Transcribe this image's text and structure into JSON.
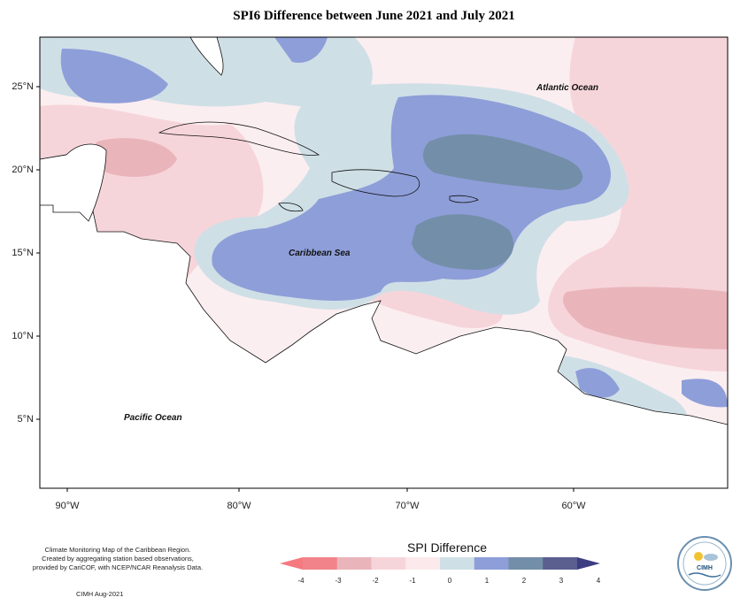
{
  "title": "SPI6 Difference between June 2021 and July 2021",
  "axes": {
    "lat_ticks": [
      "25°N",
      "20°N",
      "15°N",
      "10°N",
      "5°N"
    ],
    "lon_ticks": [
      "90°W",
      "80°W",
      "70°W",
      "60°W"
    ]
  },
  "labels": {
    "atlantic": "Atlantic Ocean",
    "caribbean": "Caribbean Sea",
    "pacific": "Pacific Ocean"
  },
  "credits": {
    "line1": "Climate Monitoring Map of the Caribbean Region.",
    "line2": "Created by aggregating station based observations,",
    "line3": "provided by CariCOF, with NCEP/NCAR Reanalysis Data.",
    "date": "CIMH Aug-2021"
  },
  "legend": {
    "title": "SPI Difference",
    "ticks": [
      "-4",
      "-3",
      "-2",
      "-1",
      "0",
      "1",
      "2",
      "3",
      "4"
    ],
    "colors": [
      "#f2838a",
      "#e9b5bb",
      "#f6d5da",
      "#fbe9ec",
      "#cfdfe6",
      "#8e9ed9",
      "#738ea8",
      "#5b5f8f"
    ],
    "extend_low": "#f47a80",
    "extend_high": "#3d3d82"
  },
  "logo": {
    "text": "CIMH"
  }
}
